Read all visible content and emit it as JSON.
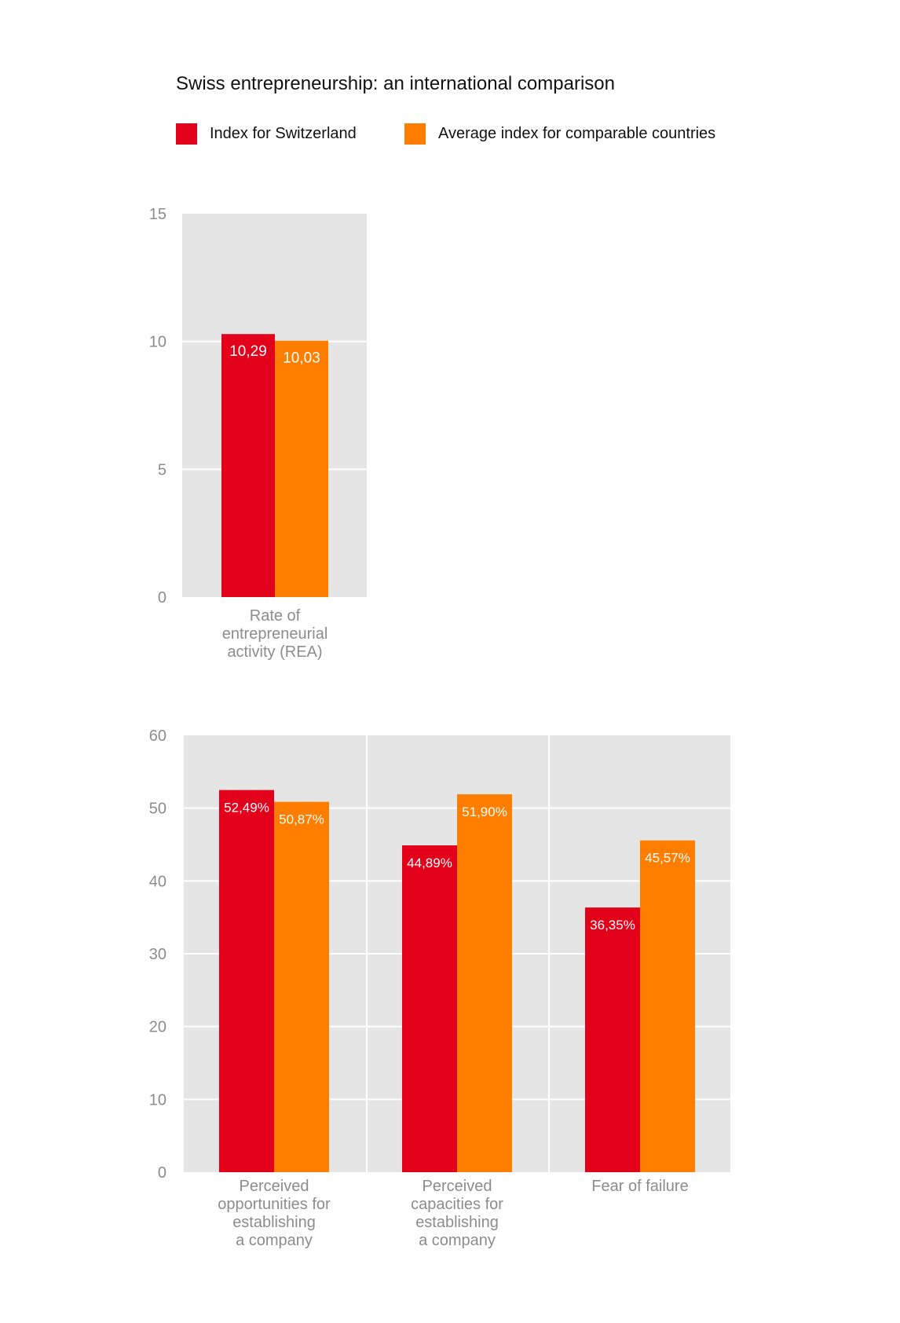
{
  "colors": {
    "switzerland": "#e2001a",
    "average": "#ff7e00",
    "plot_bg": "#e5e5e5",
    "grid": "#ffffff",
    "axis_text": "#8c8c8c"
  },
  "title": "Swiss entrepreneurship: an international comparison",
  "legend": {
    "switzerland": "Index for Switzerland",
    "average": "Average index for comparable countries"
  },
  "chart_data": [
    {
      "type": "bar",
      "title": "Swiss entrepreneurship: an international comparison",
      "categories": [
        [
          "Rate of",
          "entrepreneurial",
          "activity (REA)"
        ]
      ],
      "series": [
        {
          "name": "Index for Switzerland",
          "values": [
            10.29
          ],
          "labels": [
            "10,29"
          ]
        },
        {
          "name": "Average index for comparable countries",
          "values": [
            10.03
          ],
          "labels": [
            "10,03"
          ]
        }
      ],
      "yticks": [
        "0",
        "5",
        "10",
        "15"
      ],
      "ylim": [
        0,
        15
      ],
      "grid": true
    },
    {
      "type": "bar",
      "categories": [
        [
          "Perceived",
          "opportunities for",
          "establishing",
          "a company"
        ],
        [
          "Perceived",
          "capacities for",
          "establishing",
          "a company"
        ],
        [
          "Fear of failure"
        ]
      ],
      "series": [
        {
          "name": "Index for Switzerland",
          "values": [
            52.49,
            44.89,
            36.35
          ],
          "labels": [
            "52,49%",
            "44,89%",
            "36,35%"
          ]
        },
        {
          "name": "Average index for comparable countries",
          "values": [
            50.87,
            51.9,
            45.57
          ],
          "labels": [
            "50,87%",
            "51,90%",
            "45,57%"
          ]
        }
      ],
      "yticks": [
        "0",
        "10",
        "20",
        "30",
        "40",
        "50",
        "60"
      ],
      "ylim": [
        0,
        60
      ],
      "grid": true
    }
  ]
}
